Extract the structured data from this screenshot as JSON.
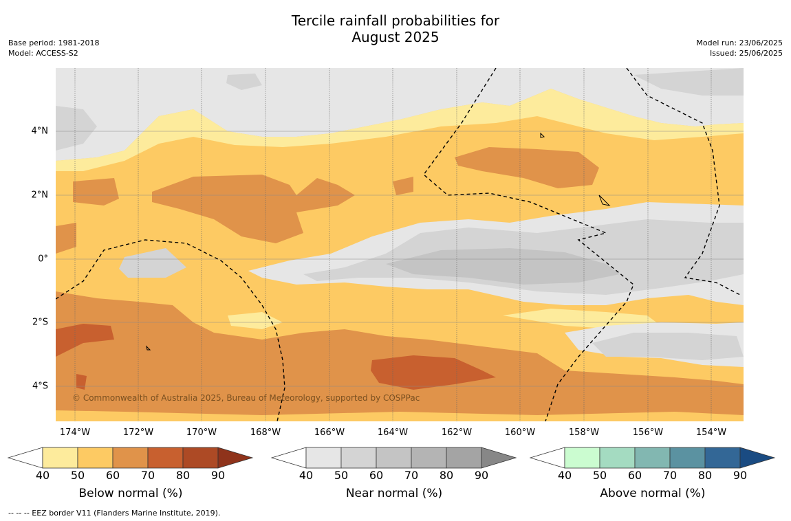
{
  "title_line1": "Tercile rainfall probabilities for",
  "title_line2": "August 2025",
  "meta_left": [
    "Base period: 1981-2018",
    "Model: ACCESS-S2"
  ],
  "meta_right": [
    "Model run: 23/06/2025",
    "Issued: 25/06/2025"
  ],
  "x_ticks": [
    "174°W",
    "172°W",
    "170°W",
    "168°W",
    "166°W",
    "164°W",
    "162°W",
    "160°W",
    "158°W",
    "156°W",
    "154°W"
  ],
  "y_ticks": [
    "4°N",
    "2°N",
    "0°",
    "2°S",
    "4°S"
  ],
  "copyright": "© Commonwealth of Australia 2025, Bureau of Meteorology, supported by COSPPac",
  "legends": [
    {
      "title": "Below normal (%)",
      "labels": [
        "40",
        "50",
        "60",
        "70",
        "80",
        "90"
      ],
      "colors": [
        "#ffffff",
        "#fdeb9c",
        "#fdca63",
        "#e0934a",
        "#c8602f",
        "#ad4a25",
        "#8f331b"
      ]
    },
    {
      "title": "Near normal (%)",
      "labels": [
        "40",
        "50",
        "60",
        "70",
        "80",
        "90"
      ],
      "colors": [
        "#ffffff",
        "#e6e6e6",
        "#d4d4d4",
        "#c4c4c4",
        "#b4b4b4",
        "#a4a4a4",
        "#878787"
      ]
    },
    {
      "title": "Above normal (%)",
      "labels": [
        "40",
        "50",
        "60",
        "70",
        "80",
        "90"
      ],
      "colors": [
        "#ffffff",
        "#cbfcd0",
        "#a4dbc1",
        "#82b7b1",
        "#5b92a1",
        "#336796",
        "#1a4b82"
      ]
    }
  ],
  "footnote": "-- -- -- EEZ border V11 (Flanders Marine Institute, 2019)."
}
